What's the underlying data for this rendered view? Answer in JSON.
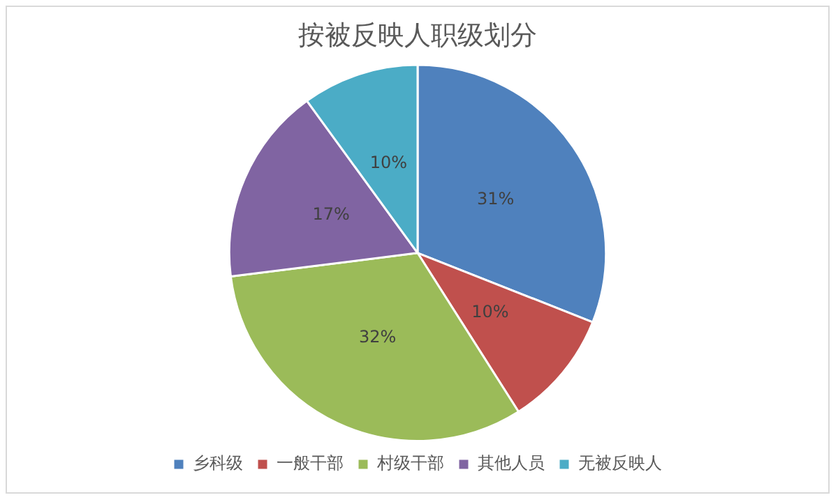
{
  "chart_data": {
    "type": "pie",
    "title": "按被反映人职级划分",
    "categories": [
      "乡科级",
      "一般干部",
      "村级干部",
      "其他人员",
      "无被反映人"
    ],
    "values": [
      31,
      10,
      32,
      17,
      10
    ],
    "value_labels": [
      "31%",
      "10%",
      "32%",
      "17%",
      "10%"
    ],
    "colors": [
      "#4f81bd",
      "#c0504d",
      "#9bbb59",
      "#8064a2",
      "#4bacc6"
    ],
    "legend": "bottom"
  }
}
